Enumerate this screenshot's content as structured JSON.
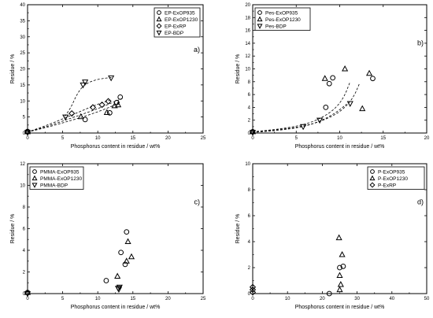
{
  "chart_data": [
    {
      "type": "scatter",
      "panel_label": "a)",
      "xlabel": "Phosphorus content in residue  /  wt%",
      "ylabel": "Residue  /  %",
      "xlim": [
        0,
        25
      ],
      "ylim": [
        0,
        40
      ],
      "xticks": [
        0,
        5,
        10,
        15,
        20,
        25
      ],
      "yticks": [
        0,
        5,
        10,
        15,
        20,
        25,
        30,
        35,
        40
      ],
      "legend_position": "top-right",
      "series": [
        {
          "name": "EP-ExOP935",
          "marker": "circle",
          "x": [
            0,
            8.2,
            11.7,
            12.7,
            13.2
          ],
          "y": [
            0.5,
            4.2,
            6.3,
            9.5,
            11.2
          ]
        },
        {
          "name": "EP-ExOP1230",
          "marker": "triangle-up",
          "x": [
            0,
            7.6,
            11.3,
            12.4,
            12.9
          ],
          "y": [
            0.4,
            5.1,
            6.4,
            8.5,
            8.8
          ]
        },
        {
          "name": "EP-ExRP",
          "marker": "diamond",
          "x": [
            0,
            6.3,
            9.3,
            10.6,
            11.5
          ],
          "y": [
            0.3,
            6.1,
            8.0,
            8.8,
            9.9
          ]
        },
        {
          "name": "EP-BDP",
          "marker": "triangle-down",
          "x": [
            0,
            5.4,
            7.9,
            8.2,
            11.9
          ],
          "y": [
            0.2,
            5.0,
            15.0,
            15.9,
            17.2
          ]
        }
      ],
      "fit_curves": [
        {
          "x": [
            0,
            3,
            6,
            8,
            10,
            12,
            13.5
          ],
          "y": [
            0.3,
            2.2,
            4.5,
            6.0,
            7.6,
            9.4,
            10.8
          ]
        },
        {
          "x": [
            0,
            3,
            6,
            8,
            10,
            12,
            13.2
          ],
          "y": [
            0.3,
            1.9,
            3.8,
            5.1,
            6.6,
            8.3,
            9.6
          ]
        },
        {
          "x": [
            0,
            3,
            6,
            8,
            10,
            12
          ],
          "y": [
            0.3,
            2.6,
            5.3,
            7.2,
            9.0,
            10.4
          ]
        },
        {
          "x": [
            5.3,
            6.2,
            7.0,
            8.0,
            9.5,
            11.0,
            12.0
          ],
          "y": [
            5.2,
            8.0,
            12.0,
            15.0,
            16.5,
            17.1,
            17.3
          ]
        }
      ]
    },
    {
      "type": "scatter",
      "panel_label": "b)",
      "xlabel": "Phosphorus content in residue  /  wt%",
      "ylabel": "Residue  /  %",
      "xlim": [
        0,
        20
      ],
      "ylim": [
        0,
        20
      ],
      "xticks": [
        0,
        5,
        10,
        15,
        20
      ],
      "yticks": [
        0,
        2,
        4,
        6,
        8,
        10,
        12,
        14,
        16,
        18,
        20
      ],
      "legend_position": "top-left",
      "series": [
        {
          "name": "Pes-ExOP935",
          "marker": "circle",
          "x": [
            0,
            8.4,
            8.8,
            9.2,
            13.8
          ],
          "y": [
            0.2,
            4.0,
            7.7,
            8.6,
            8.5
          ]
        },
        {
          "name": "Pes-ExOP1230",
          "marker": "triangle-up",
          "x": [
            0,
            8.3,
            10.6,
            12.6,
            13.4
          ],
          "y": [
            0.2,
            8.5,
            10.0,
            3.8,
            9.3
          ]
        },
        {
          "name": "Pes-BDP",
          "marker": "triangle-down",
          "x": [
            0,
            5.8,
            7.7,
            11.2
          ],
          "y": [
            0.1,
            1.0,
            2.0,
            4.6
          ]
        }
      ],
      "fit_curves": [
        {
          "x": [
            0,
            3,
            6,
            8,
            9.5,
            10.5,
            11.2
          ],
          "y": [
            0.2,
            0.6,
            1.3,
            2.4,
            3.8,
            5.6,
            8.0
          ]
        },
        {
          "x": [
            0,
            3,
            6,
            8,
            10,
            11.5,
            12.3
          ],
          "y": [
            0.2,
            0.5,
            1.1,
            1.9,
            3.2,
            5.3,
            7.8
          ]
        },
        {
          "x": [
            0,
            3,
            6,
            8,
            9.5,
            10.8
          ],
          "y": [
            0.1,
            0.4,
            1.0,
            2.0,
            3.1,
            4.5
          ]
        }
      ]
    },
    {
      "type": "scatter",
      "panel_label": "c)",
      "xlabel": "Phosphorus content in residue  /  wt%",
      "ylabel": "Residue  /  %",
      "xlim": [
        0,
        25
      ],
      "ylim": [
        0,
        12
      ],
      "xticks": [
        0,
        5,
        10,
        15,
        20,
        25
      ],
      "yticks": [
        0,
        2,
        4,
        6,
        8,
        10,
        12
      ],
      "legend_position": "top-left",
      "series": [
        {
          "name": "PMMA-ExOP935",
          "marker": "circle",
          "x": [
            0,
            11.2,
            13.3,
            13.9,
            14.1
          ],
          "y": [
            0.1,
            1.2,
            3.8,
            2.7,
            5.7
          ]
        },
        {
          "name": "PMMA-ExOP1230",
          "marker": "triangle-up",
          "x": [
            0,
            12.8,
            14.3,
            14.8,
            14.1
          ],
          "y": [
            0.1,
            1.6,
            4.8,
            3.4,
            3.0
          ]
        },
        {
          "name": "PMMA-BDP",
          "marker": "triangle-down",
          "x": [
            0,
            12.9,
            13.1,
            13.0
          ],
          "y": [
            0.0,
            0.5,
            0.6,
            0.4
          ]
        }
      ]
    },
    {
      "type": "scatter",
      "panel_label": "d)",
      "xlabel": "Phosphorus content in residue  /  wt%",
      "ylabel": "Residue  /  %",
      "xlim": [
        0,
        50
      ],
      "ylim": [
        0,
        10
      ],
      "xticks": [
        0,
        10,
        20,
        30,
        40,
        50
      ],
      "yticks": [
        0,
        2,
        4,
        6,
        8,
        10
      ],
      "legend_position": "top-right",
      "series": [
        {
          "name": "P-ExOP935",
          "marker": "circle",
          "x": [
            22,
            25,
            26
          ],
          "y": [
            0.0,
            2.0,
            2.1
          ]
        },
        {
          "name": "P-ExOP1230",
          "marker": "triangle-up",
          "x": [
            24.8,
            25.0,
            25.7,
            25.3,
            25.0
          ],
          "y": [
            4.3,
            1.4,
            3.0,
            0.7,
            0.3
          ]
        },
        {
          "name": "P-ExRP",
          "marker": "diamond",
          "x": [
            0,
            0,
            0
          ],
          "y": [
            0.1,
            0.3,
            0.5
          ]
        }
      ]
    }
  ]
}
